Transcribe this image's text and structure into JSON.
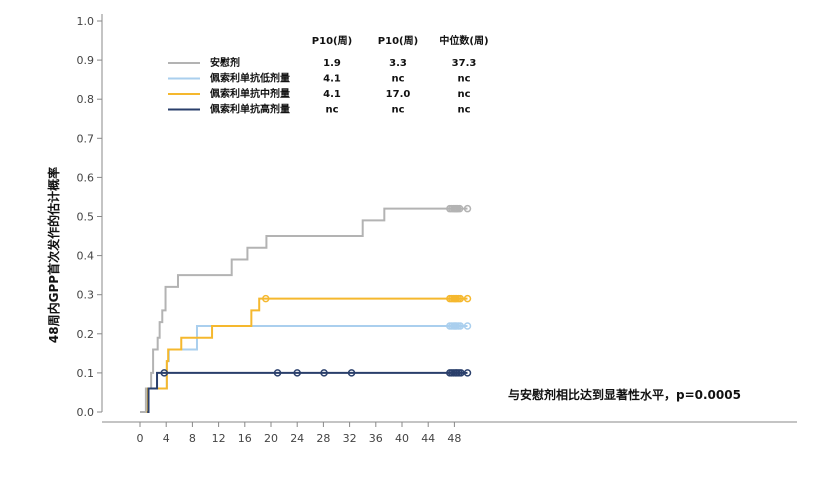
{
  "chart_data": {
    "type": "line",
    "ylabel": "48周内GPP首次发作的估计概率",
    "xlabel": "",
    "xlim": [
      -2,
      50
    ],
    "ylim": [
      0,
      1.0
    ],
    "x_ticks": [
      "0",
      "4",
      "8",
      "12",
      "16",
      "20",
      "24",
      "28",
      "32",
      "36",
      "40",
      "44",
      "48"
    ],
    "y_ticks": [
      "0.0",
      "0.1",
      "0.2",
      "0.3",
      "0.4",
      "0.5",
      "0.6",
      "0.7",
      "0.8",
      "0.9",
      "1.0"
    ],
    "grid": false,
    "legend_headers": [
      "P10(周)",
      "P10(周)",
      "中位数(周)"
    ],
    "series": [
      {
        "name": "安慰剂",
        "color": "#b3b3b3",
        "stats": [
          "1.9",
          "3.3",
          "37.3"
        ],
        "steps": [
          [
            0,
            0
          ],
          [
            0.9,
            0.06
          ],
          [
            1.7,
            0.1
          ],
          [
            2.0,
            0.16
          ],
          [
            2.7,
            0.19
          ],
          [
            3.0,
            0.23
          ],
          [
            3.4,
            0.26
          ],
          [
            3.9,
            0.32
          ],
          [
            5.8,
            0.35
          ],
          [
            14.0,
            0.39
          ],
          [
            16.4,
            0.42
          ],
          [
            19.3,
            0.45
          ],
          [
            34.0,
            0.49
          ],
          [
            37.3,
            0.52
          ],
          [
            50.0,
            0.52
          ]
        ],
        "censored": [
          47.3,
          47.6,
          47.9,
          48.1,
          48.3,
          48.5,
          48.8,
          50.0
        ]
      },
      {
        "name": "佩索利单抗低剂量",
        "color": "#aacfee",
        "stats": [
          "4.1",
          "nc",
          "nc"
        ],
        "steps": [
          [
            1.0,
            0
          ],
          [
            1.2,
            0.06
          ],
          [
            4.1,
            0.13
          ],
          [
            4.4,
            0.16
          ],
          [
            8.7,
            0.22
          ],
          [
            50.0,
            0.22
          ]
        ],
        "censored": [
          47.3,
          47.6,
          47.9,
          48.1,
          48.3,
          48.6,
          48.9,
          50.0
        ]
      },
      {
        "name": "佩索利单抗中剂量",
        "color": "#f5b82e",
        "stats": [
          "4.1",
          "17.0",
          "nc"
        ],
        "steps": [
          [
            1.0,
            0
          ],
          [
            1.2,
            0.06
          ],
          [
            4.1,
            0.13
          ],
          [
            4.3,
            0.16
          ],
          [
            6.3,
            0.19
          ],
          [
            11.0,
            0.22
          ],
          [
            17.0,
            0.26
          ],
          [
            18.2,
            0.29
          ],
          [
            50.0,
            0.29
          ]
        ],
        "censored": [
          19.2,
          47.3,
          47.6,
          47.9,
          48.1,
          48.3,
          48.6,
          48.9,
          50.0
        ]
      },
      {
        "name": "佩索利单抗高剂量",
        "color": "#2a3f6b",
        "stats": [
          "nc",
          "nc",
          "nc"
        ],
        "steps": [
          [
            1.1,
            0
          ],
          [
            1.3,
            0.06
          ],
          [
            2.6,
            0.1
          ],
          [
            50.0,
            0.1
          ]
        ],
        "censored": [
          3.7,
          21.0,
          24.0,
          28.1,
          32.3,
          47.3,
          47.6,
          47.9,
          48.2,
          48.4,
          48.7,
          49.0,
          50.0
        ]
      }
    ],
    "annotation": "与安慰剂相比达到显著性水平，p=0.0005"
  }
}
